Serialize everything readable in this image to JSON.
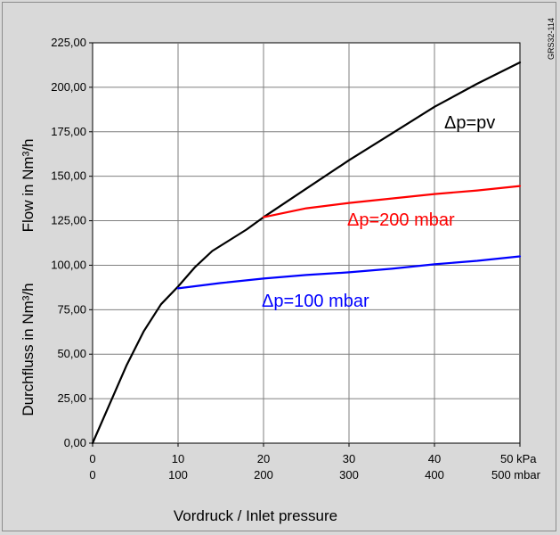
{
  "chart_data": {
    "type": "line",
    "code_label": "GRS32-114",
    "ylabel_de": "Durchfluss in Nm³/h",
    "ylabel_en": "Flow in Nm³/h",
    "xlabel": "Vordruck / Inlet pressure",
    "ylim": [
      0,
      225
    ],
    "yticks": [
      "0,00",
      "25,00",
      "50,00",
      "75,00",
      "100,00",
      "125,00",
      "150,00",
      "175,00",
      "200,00",
      "225,00"
    ],
    "xlim": [
      0,
      50
    ],
    "xticks_kpa": [
      "0",
      "10",
      "20",
      "30",
      "40",
      "50 kPa"
    ],
    "xticks_mbar": [
      "0",
      "100",
      "200",
      "300",
      "400",
      "500 mbar"
    ],
    "grid": true,
    "series": [
      {
        "name": "Δp=pv",
        "color": "#000000",
        "x": [
          0,
          2,
          4,
          6,
          8,
          10,
          12,
          14,
          16,
          18,
          20,
          25,
          30,
          35,
          40,
          45,
          50
        ],
        "y": [
          0,
          22,
          44,
          63,
          78,
          88,
          99,
          108,
          114,
          120,
          127,
          143,
          159,
          174,
          189,
          202,
          214
        ]
      },
      {
        "name": "Δp=200 mbar",
        "color": "#ff0000",
        "x": [
          20,
          25,
          30,
          35,
          40,
          45,
          50
        ],
        "y": [
          127,
          132,
          135,
          137.5,
          140,
          142,
          144.5
        ]
      },
      {
        "name": "Δp=100 mbar",
        "color": "#0000ff",
        "x": [
          10,
          15,
          20,
          25,
          30,
          35,
          40,
          45,
          50
        ],
        "y": [
          87,
          90,
          92.5,
          94.5,
          96,
          98,
          100.5,
          102.5,
          105
        ]
      }
    ]
  }
}
